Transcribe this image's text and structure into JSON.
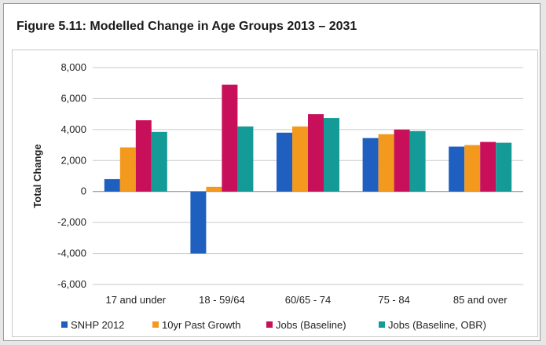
{
  "figure": {
    "title": "Figure 5.11:  Modelled Change in Age Groups 2013 – 2031"
  },
  "chart_data": {
    "type": "bar",
    "title": "",
    "xlabel": "",
    "ylabel": "Total Change",
    "ylim": [
      -6000,
      8000
    ],
    "yticks": [
      8000,
      6000,
      4000,
      2000,
      0,
      -2000,
      -4000,
      -6000
    ],
    "ytick_labels": [
      "8,000",
      "6,000",
      "4,000",
      "2,000",
      "0",
      "-2,000",
      "-4,000",
      "-6,000"
    ],
    "grid": true,
    "legend_position": "bottom",
    "categories": [
      "17 and under",
      "18 - 59/64",
      "60/65 - 74",
      "75 - 84",
      "85 and over"
    ],
    "series": [
      {
        "name": "SNHP 2012",
        "color": "#1f5fbf",
        "values": [
          800,
          -4000,
          3800,
          3450,
          2900
        ]
      },
      {
        "name": "10yr Past Growth",
        "color": "#f39a1e",
        "values": [
          2850,
          300,
          4200,
          3700,
          3000
        ]
      },
      {
        "name": "Jobs (Baseline)",
        "color": "#c8105a",
        "values": [
          4600,
          6900,
          5000,
          4000,
          3200
        ]
      },
      {
        "name": "Jobs (Baseline, OBR)",
        "color": "#149b98",
        "values": [
          3850,
          4200,
          4750,
          3900,
          3150
        ]
      }
    ]
  }
}
